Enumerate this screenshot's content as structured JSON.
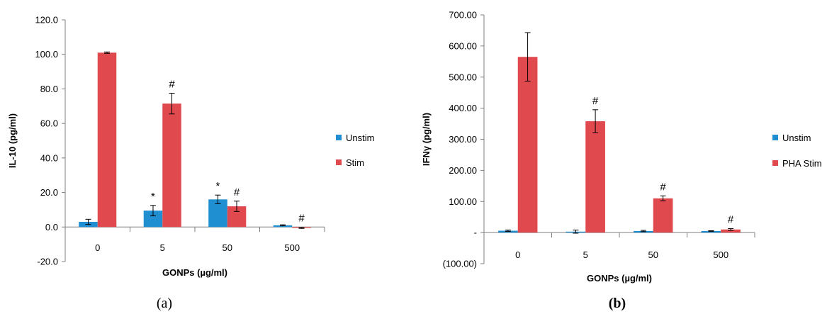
{
  "colors": {
    "unstim": "#1f8fd1",
    "stim": "#e04a4e",
    "axis": "#7f7f7f",
    "error_bar": "#000000"
  },
  "chart_data": [
    {
      "type": "bar",
      "panel_label": "(a)",
      "title": "",
      "xlabel": "GONPs (µg/ml)",
      "ylabel": "IL-10 (pg/ml)",
      "ylim": [
        -20,
        120
      ],
      "yticks": [
        -20,
        0,
        20,
        40,
        60,
        80,
        100,
        120
      ],
      "ytick_labels": [
        "-20.0",
        "0.0",
        "20.0",
        "40.0",
        "60.0",
        "80.0",
        "100.0",
        "120.0"
      ],
      "categories": [
        "0",
        "5",
        "50",
        "500"
      ],
      "grid": false,
      "legend_position": "right",
      "series": [
        {
          "name": "Unstim",
          "color": "#1f8fd1",
          "values": [
            3.0,
            9.5,
            16.0,
            1.0
          ],
          "errors": [
            1.5,
            3.0,
            2.5,
            0.3
          ],
          "markers": [
            "",
            "*",
            "*",
            ""
          ]
        },
        {
          "name": "Stim",
          "color": "#e04a4e",
          "values": [
            101.0,
            71.5,
            12.0,
            -0.5
          ],
          "errors": [
            0.4,
            6.0,
            3.0,
            0.3
          ],
          "markers": [
            "",
            "#",
            "#",
            "#"
          ]
        }
      ]
    },
    {
      "type": "bar",
      "panel_label": "(b)",
      "title": "",
      "xlabel": "GONPs (µg/ml)",
      "ylabel": "IFNγ (pg/ml)",
      "ylim": [
        -100,
        700
      ],
      "yticks": [
        -100,
        0,
        100,
        200,
        300,
        400,
        500,
        600,
        700
      ],
      "ytick_labels": [
        "(100.00)",
        "-",
        "100.00",
        "200.00",
        "300.00",
        "400.00",
        "500.00",
        "600.00",
        "700.00"
      ],
      "categories": [
        "0",
        "5",
        "50",
        "500"
      ],
      "grid": false,
      "legend_position": "right",
      "series": [
        {
          "name": "Unstim",
          "color": "#1f8fd1",
          "values": [
            6,
            3,
            5,
            5
          ],
          "errors": [
            2,
            5,
            2,
            1
          ],
          "markers": [
            "",
            "",
            "",
            ""
          ]
        },
        {
          "name": "PHA Stim",
          "color": "#e04a4e",
          "values": [
            565,
            358,
            110,
            10
          ],
          "errors": [
            78,
            37,
            8,
            3
          ],
          "markers": [
            "",
            "#",
            "#",
            "#"
          ]
        }
      ]
    }
  ]
}
